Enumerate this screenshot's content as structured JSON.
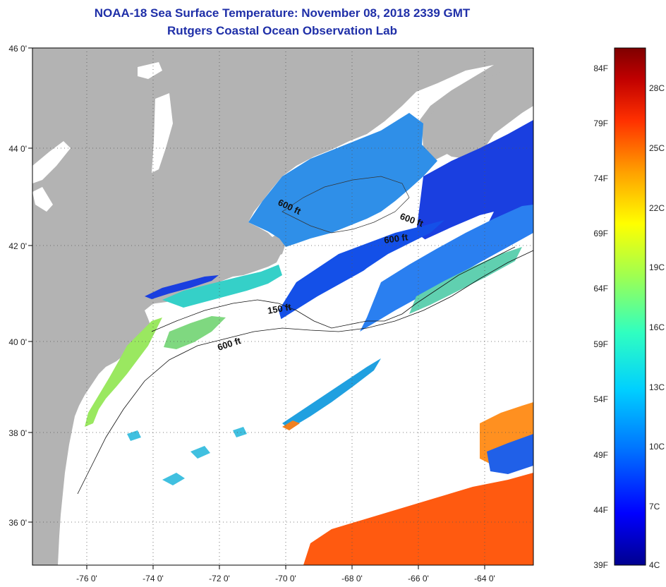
{
  "title_line1": "NOAA-18 Sea Surface Temperature:  November 08, 2018 2339 GMT",
  "title_line2": "Rutgers Coastal Ocean Observation Lab",
  "lat_labels": [
    "46 0'",
    "44 0'",
    "42 0'",
    "40 0'",
    "38 0'",
    "36 0'"
  ],
  "lon_labels": [
    "-76 0'",
    "-74 0'",
    "-72 0'",
    "-70 0'",
    "-68 0'",
    "-66 0'",
    "-64 0'"
  ],
  "contour_labels": [
    "600 ft",
    "600 ft",
    "600 ft",
    "150 ft",
    "600 ft"
  ],
  "colorbar": {
    "fahrenheit": [
      "84F",
      "79F",
      "74F",
      "69F",
      "64F",
      "59F",
      "54F",
      "49F",
      "44F",
      "39F"
    ],
    "celsius": [
      "28C",
      "25C",
      "22C",
      "19C",
      "16C",
      "13C",
      "10C",
      "7C",
      "4C"
    ],
    "colors": [
      "#00008f",
      "#0000ff",
      "#0070ff",
      "#00d0ff",
      "#30ffc0",
      "#a0ff50",
      "#ffff00",
      "#ffa000",
      "#ff3000",
      "#c00000",
      "#7f0000"
    ]
  },
  "colors": {
    "land": "#b3b3b3",
    "cloud": "#ffffff",
    "title": "#1f2fa8"
  }
}
